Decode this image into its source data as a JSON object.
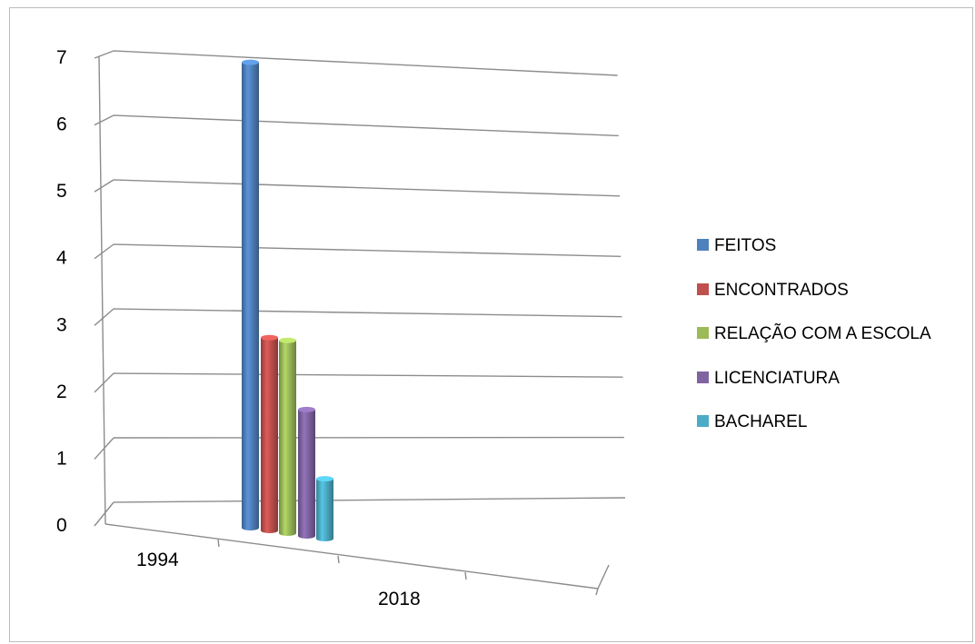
{
  "chart_data": {
    "type": "bar",
    "categories": [
      "1994",
      "2018"
    ],
    "series": [
      {
        "name": "FEITOS",
        "values": [
          7,
          null
        ],
        "color": "#4F81BD"
      },
      {
        "name": "ENCONTRADOS",
        "values": [
          2.9,
          null
        ],
        "color": "#C0504D"
      },
      {
        "name": "RELAÇÃO COM A ESCOLA",
        "values": [
          2.9,
          null
        ],
        "color": "#9BBB59"
      },
      {
        "name": "LICENCIATURA",
        "values": [
          1.9,
          null
        ],
        "color": "#8064A2"
      },
      {
        "name": "BACHAREL",
        "values": [
          0.9,
          null
        ],
        "color": "#4BACC6"
      }
    ],
    "y_ticks": [
      "0",
      "1",
      "2",
      "3",
      "4",
      "5",
      "6",
      "7"
    ],
    "ylim": [
      0,
      7
    ],
    "grid": true,
    "legend_position": "right",
    "projection": "3d-perspective"
  }
}
